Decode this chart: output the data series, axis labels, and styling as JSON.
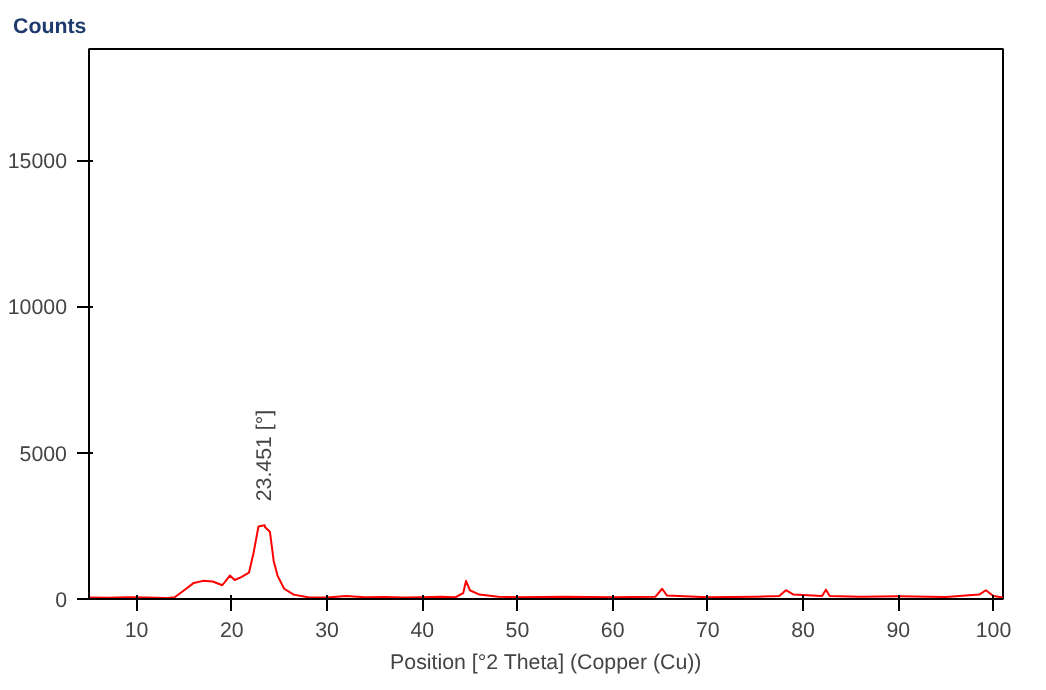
{
  "chart_data": {
    "type": "line",
    "ylabel": "Counts",
    "xlabel": "Position [°2 Theta] (Copper (Cu))",
    "xlim": [
      5,
      101
    ],
    "ylim": [
      0,
      18800
    ],
    "xticks": [
      10,
      20,
      30,
      40,
      50,
      60,
      70,
      80,
      90,
      100
    ],
    "yticks": [
      0,
      5000,
      10000,
      15000
    ],
    "grid": false,
    "marker": "none",
    "line_style": "solid",
    "annotations": [
      {
        "text": "23.451 [°]",
        "x": 23.451,
        "y": 2520
      }
    ],
    "series": [
      {
        "color": "#ff0000",
        "x": [
          5,
          7,
          9,
          11,
          13,
          14,
          15,
          16,
          17,
          18,
          19,
          19.8,
          20.3,
          21,
          21.8,
          22.3,
          22.8,
          23.451,
          23.5,
          24,
          24.4,
          24.8,
          25.5,
          26.5,
          28,
          30,
          32,
          34,
          36,
          38,
          40,
          42,
          43.5,
          44.3,
          44.6,
          45,
          46,
          48,
          50,
          55,
          60,
          64.5,
          65.2,
          65.7,
          70,
          75,
          77.5,
          78.2,
          79,
          82,
          82.4,
          82.8,
          86,
          90,
          95,
          98.5,
          99.2,
          100,
          101
        ],
        "values": [
          50,
          40,
          60,
          50,
          30,
          60,
          300,
          550,
          620,
          600,
          470,
          800,
          650,
          750,
          900,
          1600,
          2480,
          2520,
          2450,
          2300,
          1300,
          800,
          350,
          150,
          60,
          50,
          100,
          60,
          70,
          50,
          60,
          80,
          60,
          200,
          620,
          300,
          150,
          80,
          60,
          80,
          60,
          80,
          350,
          120,
          60,
          80,
          100,
          300,
          150,
          100,
          320,
          100,
          80,
          90,
          70,
          150,
          300,
          100,
          50
        ]
      }
    ]
  }
}
